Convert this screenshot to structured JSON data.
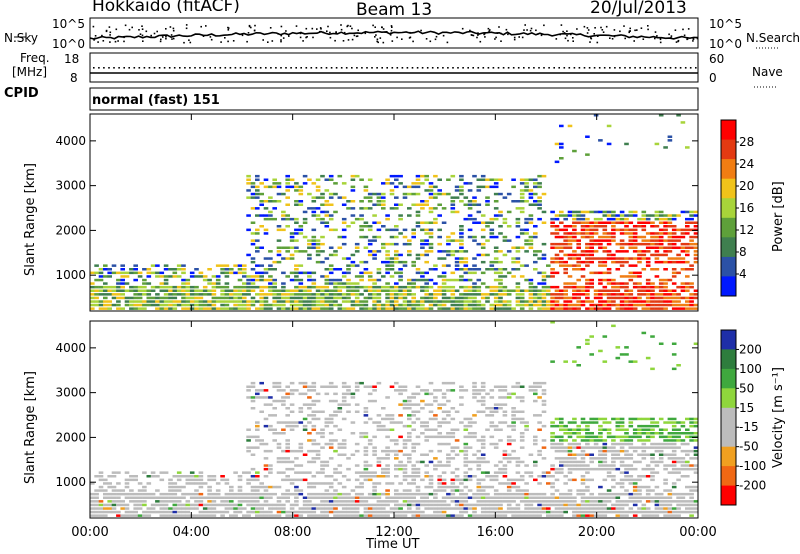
{
  "header": {
    "station": "Hokkaido (fitACF)",
    "beam": "Beam 13",
    "date": "20/Jul/2013"
  },
  "top_panel": {
    "left_label": "N.Sky",
    "right_label": "N.Search",
    "yticks_left": [
      "10^5",
      "10^0"
    ],
    "yticks_right": [
      "10^5",
      "10^0"
    ]
  },
  "freq_panel": {
    "left_label_1": "Freq.",
    "left_label_2": "[MHz]",
    "right_label": "Nave",
    "yticks_left": [
      "18",
      "8"
    ],
    "yticks_right": [
      "60",
      "0"
    ]
  },
  "cpid": {
    "label": "CPID",
    "value": "normal (fast) 151"
  },
  "colors": {
    "power_scale": [
      "#0018ff",
      "#2b51a6",
      "#3f7f4f",
      "#5ea03a",
      "#a8d43a",
      "#f0c31a",
      "#f07d13",
      "#e33a12",
      "#ff0000"
    ],
    "velocity_scale": [
      "#1e2ea8",
      "#2e7d3d",
      "#3fa83e",
      "#8fd63c",
      "#bcbcbc",
      "#bcbcbc",
      "#f0a020",
      "#f06814",
      "#ff0000"
    ]
  },
  "chart_data": [
    {
      "type": "heatmap",
      "name": "power",
      "ylabel": "Slant Range [km]",
      "yticks": [
        "1000",
        "2000",
        "3000",
        "4000"
      ],
      "ylim": [
        200,
        4600
      ],
      "colorbar_label": "Power [dB]",
      "colorbar_ticks": [
        "4",
        "8",
        "12",
        "16",
        "20",
        "24",
        "28"
      ],
      "colorbar_range": [
        0,
        32
      ]
    },
    {
      "type": "heatmap",
      "name": "velocity",
      "ylabel": "Slant Range [km]",
      "yticks": [
        "1000",
        "2000",
        "3000",
        "4000"
      ],
      "ylim": [
        200,
        4600
      ],
      "colorbar_label": "Velocity [m s⁻¹]",
      "colorbar_ticks": [
        "200",
        "100",
        "50",
        "15",
        "-15",
        "-50",
        "-100",
        "-200"
      ]
    }
  ],
  "xaxis": {
    "ticks": [
      "00:00",
      "04:00",
      "08:00",
      "12:00",
      "16:00",
      "20:00",
      "00:00"
    ],
    "label": "Time UT"
  }
}
